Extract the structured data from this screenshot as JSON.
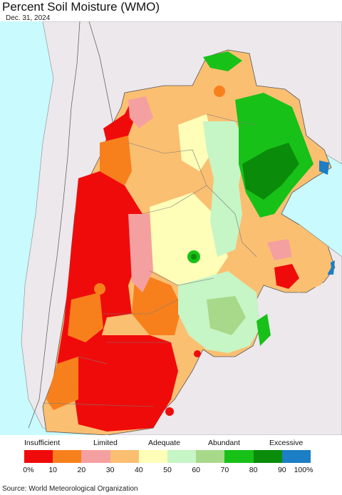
{
  "title": "Percent Soil Moisture (WMO)",
  "date": "Dec. 31, 2024",
  "legend": {
    "categories": [
      "Insufficient",
      "Limited",
      "Adequate",
      "Abundant",
      "Excessive"
    ],
    "colors": [
      "#f00b0b",
      "#f8801c",
      "#f5a0a0",
      "#fbbf72",
      "#fefeb8",
      "#c6f5c6",
      "#a8d98a",
      "#18c118",
      "#0a8c0a",
      "#1c7ec4"
    ],
    "ticks": [
      "0%",
      "10",
      "20",
      "30",
      "40",
      "50",
      "60",
      "70",
      "80",
      "90",
      "100%"
    ]
  },
  "map_colors": {
    "ocean": "#c8fafe",
    "land_outside": "#ece8ec",
    "border": "#7a7a7a"
  },
  "source": "Source: World Meteorological Organization"
}
